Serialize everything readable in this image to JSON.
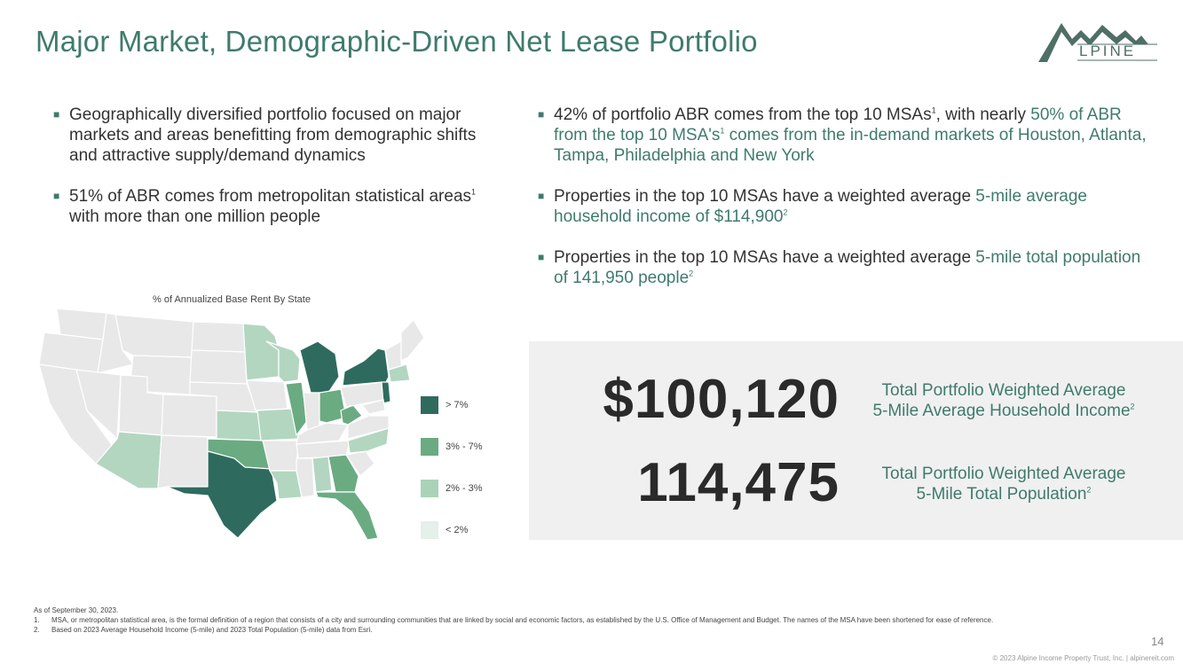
{
  "title": "Major Market, Demographic-Driven Net Lease Portfolio",
  "logo": {
    "text": "LPINE",
    "letter": "A",
    "subtext": "INCOME PROPERTY TRUST"
  },
  "left_bullets": [
    {
      "text": "Geographically diversified portfolio focused on major markets and areas benefitting from demographic shifts and attractive supply/demand dynamics"
    },
    {
      "pre": "51% of ABR comes from metropolitan statistical areas",
      "sup": "1",
      "post": " with more than one million people"
    }
  ],
  "right_bullets": [
    {
      "pre": "42% of portfolio ABR comes from the top 10 MSAs",
      "sup": "1",
      "mid": ", with nearly ",
      "hl": "50% of ABR from the top 10 MSA's",
      "sup2": "1",
      "hl2": " comes from the in-demand markets of Houston, Atlanta, Tampa, Philadelphia and New York"
    },
    {
      "pre": "Properties in the top 10 MSAs have a weighted average ",
      "hl": "5-mile average household income of $114,900",
      "sup": "2"
    },
    {
      "pre": "Properties in the top 10 MSAs have a weighted average ",
      "hl": "5-mile total population of 141,950 people",
      "sup": "2"
    }
  ],
  "map": {
    "title": "% of Annualized Base Rent By State",
    "legend": [
      {
        "label": "> 7%",
        "color": "#2e6b5e"
      },
      {
        "label": "3% - 7%",
        "color": "#6aab82"
      },
      {
        "label": "2% - 3%",
        "color": "#a9d3b8"
      },
      {
        "label": "< 2%",
        "color": "#e4f0e9"
      }
    ]
  },
  "stats": [
    {
      "value": "$100,120",
      "label_line1": "Total Portfolio Weighted Average",
      "label_line2": "5-Mile Average Household Income",
      "sup": "2"
    },
    {
      "value": "114,475",
      "label_line1": "Total Portfolio Weighted Average",
      "label_line2": "5-Mile Total Population",
      "sup": "2"
    }
  ],
  "footnotes": {
    "as_of": "As of September 30, 2023.",
    "items": [
      {
        "num": "1.",
        "text": "MSA, or metropolitan statistical area, is the formal definition of a region that consists of a city and surrounding communities that are linked by social and economic factors, as established by the U.S. Office of Management and Budget. The names of the MSA have been shortened for ease of reference."
      },
      {
        "num": "2.",
        "text": "Based on 2023 Average Household Income (5-mile) and 2023 Total Population (5-mile) data from Esri."
      }
    ]
  },
  "page_number": "14",
  "copyright": "© 2023 Alpine Income Property Trust, Inc.  |  alpinereit.com"
}
